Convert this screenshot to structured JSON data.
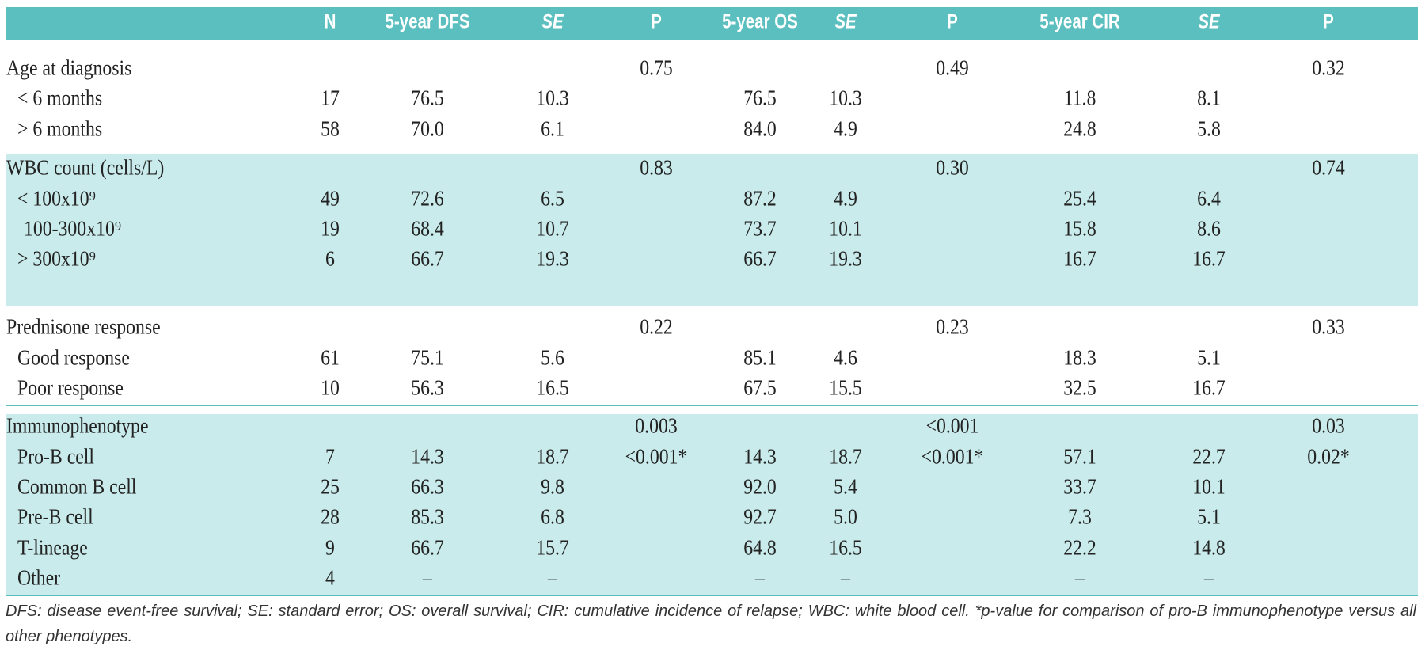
{
  "table": {
    "header": [
      "N",
      "5-year DFS",
      "SE",
      "P",
      "5-year OS",
      "SE",
      "P",
      "5-year CIR",
      "SE",
      "P"
    ],
    "groups": [
      {
        "rows": [
          {
            "label": "Age at diagnosis",
            "cells": [
              null,
              null,
              null,
              "0.75",
              null,
              null,
              "0.49",
              null,
              null,
              "0.32"
            ]
          },
          {
            "label": "< 6 months",
            "cells": [
              "17",
              "76.5",
              "10.3",
              null,
              "76.5",
              "10.3",
              null,
              "11.8",
              "8.1",
              null
            ]
          },
          {
            "label": "> 6 months",
            "cells": [
              "58",
              "70.0",
              "6.1",
              null,
              "84.0",
              "4.9",
              null,
              "24.8",
              "5.8",
              null
            ]
          }
        ]
      },
      {
        "rows": [
          {
            "label": "WBC count (cells/L)",
            "cells": [
              null,
              null,
              null,
              "0.83",
              null,
              null,
              "0.30",
              null,
              null,
              "0.74"
            ]
          },
          {
            "label": "< 100x10⁹",
            "cells": [
              "49",
              "72.6",
              "6.5",
              null,
              "87.2",
              "4.9",
              null,
              "25.4",
              "6.4",
              null
            ]
          },
          {
            "label": "100-300x10⁹",
            "cells": [
              "19",
              "68.4",
              "10.7",
              null,
              "73.7",
              "10.1",
              null,
              "15.8",
              "8.6",
              null
            ]
          },
          {
            "label": "> 300x10⁹",
            "cells": [
              "6",
              "66.7",
              "19.3",
              null,
              "66.7",
              "19.3",
              null,
              "16.7",
              "16.7",
              null
            ]
          }
        ]
      },
      {
        "rows": [
          {
            "label": "Prednisone response",
            "cells": [
              null,
              null,
              null,
              "0.22",
              null,
              null,
              "0.23",
              null,
              null,
              "0.33"
            ]
          },
          {
            "label": "Good response",
            "cells": [
              "61",
              "75.1",
              "5.6",
              null,
              "85.1",
              "4.6",
              null,
              "18.3",
              "5.1",
              null
            ]
          },
          {
            "label": "Poor response",
            "cells": [
              "10",
              "56.3",
              "16.5",
              null,
              "67.5",
              "15.5",
              null,
              "32.5",
              "16.7",
              null
            ]
          }
        ]
      },
      {
        "rows": [
          {
            "label": "Immunophenotype",
            "cells": [
              null,
              null,
              null,
              "0.003",
              null,
              null,
              "<0.001",
              null,
              null,
              "0.03"
            ]
          },
          {
            "label": "Pro-B cell",
            "cells": [
              "7",
              "14.3",
              "18.7",
              "<0.001*",
              "14.3",
              "18.7",
              "<0.001*",
              "57.1",
              "22.7",
              "0.02*"
            ]
          },
          {
            "label": "Common B cell",
            "cells": [
              "25",
              "66.3",
              "9.8",
              null,
              "92.0",
              "5.4",
              null,
              "33.7",
              "10.1",
              null
            ]
          },
          {
            "label": "Pre-B cell",
            "cells": [
              "28",
              "85.3",
              "6.8",
              null,
              "92.7",
              "5.0",
              null,
              "7.3",
              "5.1",
              null
            ]
          },
          {
            "label": "T-lineage",
            "cells": [
              "9",
              "66.7",
              "15.7",
              null,
              "64.8",
              "16.5",
              null,
              "22.2",
              "14.8",
              null
            ]
          },
          {
            "label": "Other",
            "cells": [
              "4",
              "–",
              "–",
              null,
              "–",
              "–",
              null,
              "–",
              "–",
              null
            ]
          }
        ]
      }
    ],
    "footnote": "DFS: disease event-free survival; SE: standard error; OS: overall survival; CIR: cumulative incidence of relapse; WBC: white blood cell. *p-value for comparison of pro-B immunophenotype versus all other phenotypes."
  }
}
